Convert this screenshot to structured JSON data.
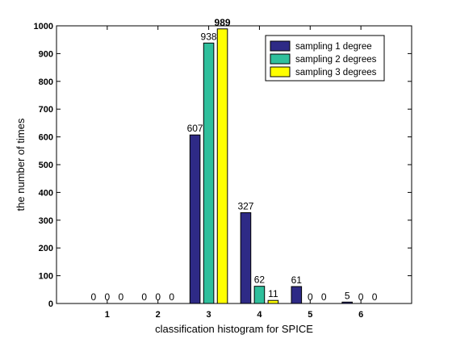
{
  "chart_data": {
    "type": "bar",
    "xlabel": "classification histogram for SPICE",
    "ylabel": "the number of times",
    "categories": [
      "1",
      "2",
      "3",
      "4",
      "5",
      "6"
    ],
    "ylim": [
      0,
      1000
    ],
    "yticks": [
      0,
      100,
      200,
      300,
      400,
      500,
      600,
      700,
      800,
      900,
      1000
    ],
    "xlim": [
      0,
      7
    ],
    "grid": false,
    "legend_position": "top-right",
    "series": [
      {
        "name": "sampling 1 degree",
        "color": "#2e2a86",
        "values": [
          0,
          0,
          607,
          327,
          61,
          5
        ]
      },
      {
        "name": "sampling 2 degrees",
        "color": "#2fbf9c",
        "values": [
          0,
          0,
          938,
          62,
          0,
          0
        ]
      },
      {
        "name": "sampling 3 degrees",
        "color": "#ffff00",
        "values": [
          0,
          0,
          989,
          11,
          0,
          0
        ]
      }
    ],
    "data_labels": [
      [
        "0",
        "0",
        "607",
        "327",
        "61",
        "5"
      ],
      [
        "0",
        "0",
        "938",
        "62",
        "0",
        "0"
      ],
      [
        "0",
        "0",
        "989",
        "11",
        "0",
        "0"
      ]
    ],
    "bold_labels": [
      [
        2,
        2
      ]
    ]
  }
}
